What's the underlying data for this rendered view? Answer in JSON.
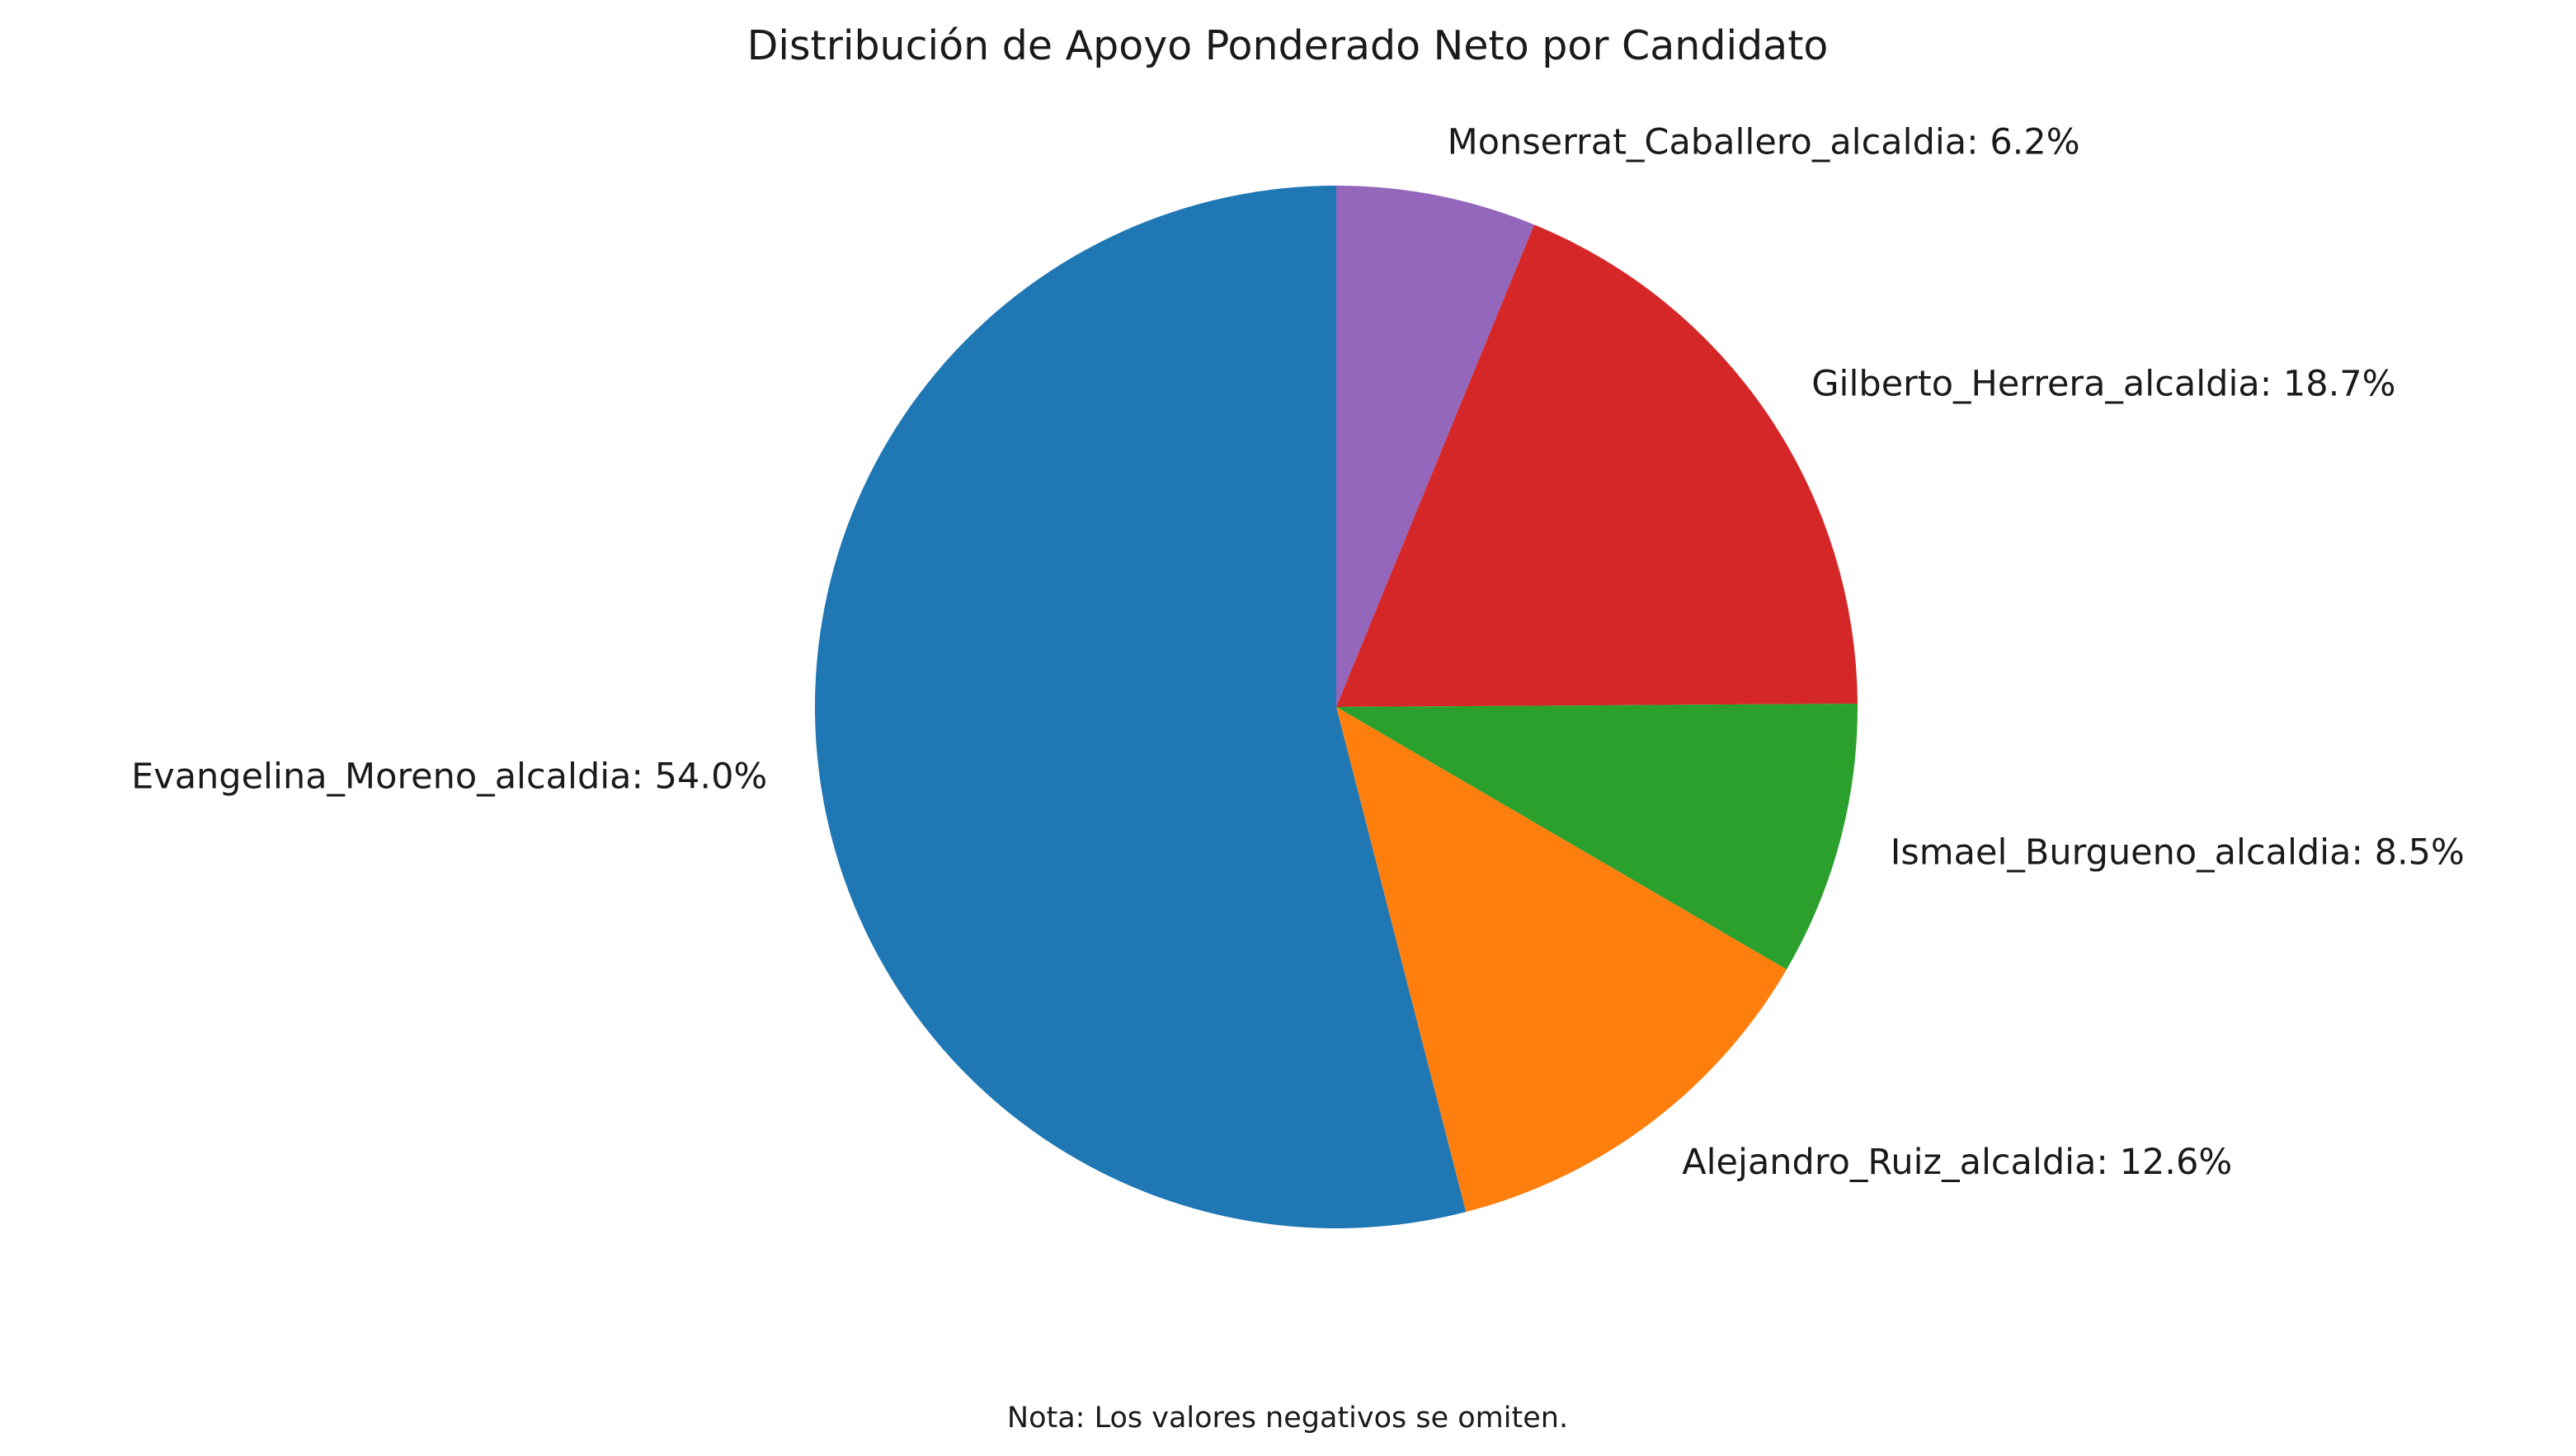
{
  "chart_data": {
    "type": "pie",
    "title": "Distribución de Apoyo Ponderado Neto por Candidato",
    "note": "Nota: Los valores negativos se omiten.",
    "start_angle_deg": 90,
    "direction": "clockwise",
    "slices": [
      {
        "label": "Monserrat_Caballero_alcaldia",
        "value": 6.2,
        "display": "Monserrat_Caballero_alcaldia: 6.2%",
        "color": "#9467bd"
      },
      {
        "label": "Gilberto_Herrera_alcaldia",
        "value": 18.7,
        "display": "Gilberto_Herrera_alcaldia: 18.7%",
        "color": "#d62728"
      },
      {
        "label": "Ismael_Burgueno_alcaldia",
        "value": 8.5,
        "display": "Ismael_Burgueno_alcaldia: 8.5%",
        "color": "#2ca02c"
      },
      {
        "label": "Alejandro_Ruiz_alcaldia",
        "value": 12.6,
        "display": "Alejandro_Ruiz_alcaldia: 12.6%",
        "color": "#ff7f0e"
      },
      {
        "label": "Evangelina_Moreno_alcaldia",
        "value": 54.0,
        "display": "Evangelina_Moreno_alcaldia: 54.0%",
        "color": "#1f77b4"
      }
    ]
  }
}
